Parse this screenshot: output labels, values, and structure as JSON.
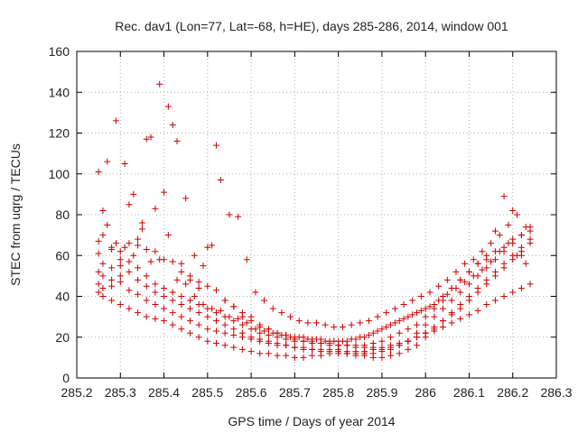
{
  "chart_data": {
    "type": "scatter",
    "title": "Rec. dav1 (Lon=77, Lat=-68, h=HE), days 285-286, 2014, window 001",
    "xlabel": "GPS time / Days of year 2014",
    "ylabel": "STEC from uqrg / TECUs",
    "xlim": [
      285.2,
      286.3
    ],
    "ylim": [
      0,
      160
    ],
    "xticks": [
      "285.2",
      "285.3",
      "285.4",
      "285.5",
      "285.6",
      "285.7",
      "285.8",
      "285.9",
      "286",
      "286.1",
      "286.2",
      "286.3"
    ],
    "yticks": [
      "0",
      "20",
      "40",
      "60",
      "80",
      "100",
      "120",
      "140",
      "160"
    ],
    "grid": true,
    "legend": "none",
    "marker": "plus",
    "color": "#cc0000",
    "series": [
      {
        "x": [
          285.25,
          285.26,
          285.28,
          285.3,
          285.32,
          285.34,
          285.36,
          285.38,
          285.4,
          285.42,
          285.44,
          285.46,
          285.48,
          285.5,
          285.52,
          285.54,
          285.56,
          285.58,
          285.6,
          285.62,
          285.64,
          285.66,
          285.68,
          285.7,
          285.72,
          285.74,
          285.76,
          285.78,
          285.8,
          285.82,
          285.84,
          285.86,
          285.88,
          285.9,
          285.92,
          285.94,
          285.96,
          285.98,
          286.0,
          286.02,
          286.04,
          286.06,
          286.08,
          286.1,
          286.12,
          286.14,
          286.16,
          286.18,
          286.2,
          286.22,
          286.24
        ],
        "y": [
          67,
          70,
          63,
          62,
          66,
          65,
          63,
          62,
          58,
          57,
          52,
          50,
          47,
          45,
          43,
          38,
          35,
          30,
          28,
          25,
          24,
          22,
          21,
          19,
          18,
          18,
          17,
          16,
          16,
          16,
          15,
          15,
          15,
          15,
          16,
          17,
          18,
          20,
          22,
          23,
          25,
          27,
          29,
          31,
          33,
          36,
          38,
          40,
          42,
          44,
          46
        ]
      },
      {
        "x": [
          285.25,
          285.26,
          285.28,
          285.3,
          285.32,
          285.34,
          285.36,
          285.38,
          285.4,
          285.42,
          285.44,
          285.46,
          285.48,
          285.5,
          285.52,
          285.54,
          285.56,
          285.58,
          285.6,
          285.62,
          285.64,
          285.66,
          285.68,
          285.7,
          285.72,
          285.74,
          285.76,
          285.78,
          285.8,
          285.82,
          285.84,
          285.86,
          285.88,
          285.9,
          285.92,
          285.94,
          285.96,
          285.98,
          286.0,
          286.02,
          286.04,
          286.06,
          286.08,
          286.1,
          286.12,
          286.14,
          286.16,
          286.18,
          286.2,
          286.22,
          286.24
        ],
        "y": [
          52,
          50,
          48,
          50,
          52,
          48,
          45,
          42,
          40,
          38,
          36,
          34,
          32,
          30,
          28,
          26,
          24,
          22,
          20,
          19,
          18,
          17,
          16,
          15,
          14,
          14,
          13,
          13,
          13,
          12,
          12,
          12,
          12,
          13,
          14,
          16,
          18,
          22,
          26,
          30,
          34,
          38,
          42,
          46,
          50,
          54,
          58,
          62,
          66,
          70,
          74
        ]
      },
      {
        "x": [
          285.25,
          285.26,
          285.28,
          285.3,
          285.32,
          285.34,
          285.36,
          285.38,
          285.4,
          285.42,
          285.44,
          285.46,
          285.48,
          285.5,
          285.52,
          285.54,
          285.56,
          285.58,
          285.6,
          285.62,
          285.64,
          285.66,
          285.68,
          285.7,
          285.72,
          285.74,
          285.76,
          285.78,
          285.8,
          285.82,
          285.84,
          285.86,
          285.88,
          285.9,
          285.92,
          285.94,
          285.96,
          285.98,
          286.0,
          286.02,
          286.04,
          286.06,
          286.08,
          286.1,
          286.12,
          286.14,
          286.16,
          286.18,
          286.2,
          286.22,
          286.24
        ],
        "y": [
          42,
          40,
          38,
          36,
          34,
          32,
          30,
          29,
          28,
          26,
          24,
          22,
          20,
          18,
          17,
          16,
          15,
          14,
          13,
          12,
          12,
          11,
          11,
          10,
          10,
          11,
          11,
          12,
          12,
          12,
          11,
          11,
          10,
          10,
          11,
          12,
          14,
          16,
          20,
          24,
          28,
          32,
          36,
          40,
          44,
          48,
          52,
          56,
          60,
          64,
          68
        ]
      },
      {
        "x": [
          285.25,
          285.26,
          285.28,
          285.3,
          285.32,
          285.34,
          285.36,
          285.38,
          285.4,
          285.42,
          285.44,
          285.46,
          285.48,
          285.5,
          285.52,
          285.54,
          285.56,
          285.58,
          285.6,
          285.62,
          285.64,
          285.66,
          285.68,
          285.7,
          285.72,
          285.74,
          285.76,
          285.78,
          285.8,
          285.82,
          285.84,
          285.86,
          285.88,
          285.9,
          285.92,
          285.94,
          285.96,
          285.98,
          286.0,
          286.02,
          286.04,
          286.06,
          286.08,
          286.1,
          286.12,
          286.14,
          286.16,
          286.18,
          286.2,
          286.22,
          286.24
        ],
        "y": [
          61,
          56,
          54,
          55,
          57,
          54,
          50,
          46,
          44,
          42,
          40,
          38,
          36,
          34,
          32,
          30,
          28,
          26,
          24,
          22,
          21,
          20,
          19,
          18,
          18,
          17,
          17,
          17,
          16,
          16,
          16,
          16,
          17,
          18,
          20,
          22,
          24,
          26,
          30,
          34,
          38,
          44,
          48,
          52,
          56,
          58,
          62,
          64,
          68,
          70,
          72
        ]
      },
      {
        "x": [
          285.25,
          285.26,
          285.28,
          285.3,
          285.32,
          285.34,
          285.36,
          285.38,
          285.4,
          285.42,
          285.44,
          285.46,
          285.48,
          285.5,
          285.52,
          285.54,
          285.56,
          285.58,
          285.6,
          285.62,
          285.64,
          285.66,
          285.68,
          285.7,
          285.72,
          285.74,
          285.76,
          285.78,
          285.8,
          285.82,
          285.84,
          285.86,
          285.88,
          285.9,
          285.92,
          285.94,
          285.96,
          285.98,
          286.0,
          286.02,
          286.04,
          286.06,
          286.08,
          286.1,
          286.12,
          286.14,
          286.16,
          286.18,
          286.2,
          286.22,
          286.24
        ],
        "y": [
          46,
          44,
          45,
          47,
          43,
          41,
          38,
          36,
          34,
          32,
          30,
          28,
          26,
          24,
          23,
          22,
          21,
          20,
          19,
          18,
          17,
          16,
          16,
          15,
          15,
          14,
          14,
          14,
          14,
          13,
          13,
          13,
          14,
          14,
          15,
          16,
          18,
          20,
          22,
          25,
          28,
          31,
          34,
          38,
          42,
          46,
          50,
          54,
          58,
          62,
          66
        ]
      },
      {
        "x": [
          285.25,
          285.27,
          285.29,
          285.31,
          285.33,
          285.35,
          285.37,
          285.39,
          285.41,
          285.43,
          285.45,
          285.47,
          285.49,
          285.51,
          285.53,
          285.55,
          285.57,
          285.59,
          285.61,
          285.63,
          285.65,
          285.67,
          285.69,
          285.71,
          285.73,
          285.75,
          285.77,
          285.79,
          285.81,
          285.83,
          285.85,
          285.87,
          285.89,
          285.91,
          285.93,
          285.95,
          285.97,
          285.99,
          286.01,
          286.03,
          286.05,
          286.07,
          286.09,
          286.11,
          286.13,
          286.15,
          286.17,
          286.19,
          286.21,
          286.23
        ],
        "y": [
          101,
          106,
          126,
          105,
          90,
          76,
          118,
          144,
          133,
          116,
          88,
          60,
          55,
          65,
          97,
          80,
          79,
          58,
          42,
          38,
          34,
          32,
          30,
          28,
          27,
          27,
          26,
          25,
          25,
          26,
          27,
          28,
          30,
          32,
          34,
          36,
          38,
          40,
          42,
          45,
          48,
          52,
          56,
          58,
          62,
          66,
          70,
          75,
          80,
          74
        ]
      },
      {
        "x": [
          285.26,
          285.28,
          285.3,
          285.32,
          285.34,
          285.36,
          285.38,
          285.4,
          285.42,
          285.44,
          285.46,
          285.48,
          285.5,
          285.52,
          285.54,
          285.56,
          285.58,
          285.6,
          285.62,
          285.64,
          285.66,
          285.68,
          285.7,
          285.72,
          285.74,
          285.76,
          285.78,
          285.8,
          285.82,
          285.84,
          285.86,
          285.88,
          285.9,
          285.92,
          285.94,
          285.96,
          285.98,
          286.0,
          286.02,
          286.04,
          286.06,
          286.08,
          286.1,
          286.12,
          286.14,
          286.16,
          286.18,
          286.2,
          286.22
        ],
        "y": [
          82,
          64,
          58,
          85,
          68,
          117,
          83,
          91,
          124,
          56,
          48,
          44,
          64,
          114,
          38,
          35,
          32,
          30,
          26,
          24,
          22,
          21,
          20,
          20,
          19,
          19,
          18,
          18,
          18,
          19,
          20,
          22,
          24,
          26,
          28,
          30,
          32,
          34,
          36,
          40,
          44,
          48,
          52,
          56,
          60,
          72,
          89,
          82,
          60
        ]
      },
      {
        "x": [
          285.27,
          285.29,
          285.31,
          285.33,
          285.35,
          285.37,
          285.39,
          285.41,
          285.43,
          285.45,
          285.47,
          285.49,
          285.51,
          285.53,
          285.55,
          285.57,
          285.59,
          285.61,
          285.63,
          285.65,
          285.67,
          285.69,
          285.71,
          285.73,
          285.75,
          285.77,
          285.79,
          285.81,
          285.83,
          285.85,
          285.87,
          285.89,
          285.91,
          285.93,
          285.95,
          285.97,
          285.99,
          286.01,
          286.03,
          286.05,
          286.07,
          286.09,
          286.11,
          286.13,
          286.15,
          286.17,
          286.19,
          286.21,
          286.23
        ],
        "y": [
          75,
          66,
          64,
          60,
          73,
          57,
          58,
          70,
          48,
          46,
          40,
          36,
          34,
          33,
          30,
          29,
          27,
          24,
          23,
          22,
          21,
          20,
          20,
          19,
          19,
          18,
          18,
          18,
          19,
          20,
          21,
          23,
          25,
          27,
          29,
          31,
          33,
          35,
          38,
          41,
          44,
          47,
          50,
          53,
          57,
          62,
          66,
          60,
          56
        ]
      }
    ]
  }
}
